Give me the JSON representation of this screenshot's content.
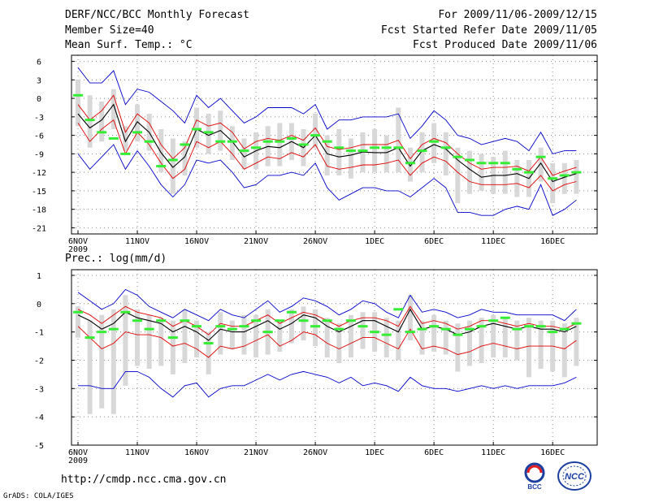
{
  "header": {
    "title": "DERF/NCC/BCC Monthly Forecast",
    "member_size": "Member Size=40",
    "variable_temp": "Mean Surf. Temp.: °C",
    "period": "For 2009/11/06-2009/12/15",
    "refer_date": "Fcst Started Refer Date 2009/11/05",
    "produced_date": "Fcst Produced Date 2009/11/06"
  },
  "footer": {
    "url": "http://cmdp.ncc.cma.gov.cn",
    "grads": "GrADS: COLA/IGES",
    "logo_bcc": "BCC",
    "logo_ncc": "NCC"
  },
  "colors": {
    "mean": "#000000",
    "spread": "#e00000",
    "extreme": "#0000cc",
    "box": "#d8d8d8",
    "obs": "#33ee33",
    "grid": "#888888"
  },
  "chart_data": [
    {
      "type": "line",
      "title": "Mean Surf. Temp.: °C",
      "x_tick_labels": [
        "6NOV",
        "11NOV",
        "16NOV",
        "21NOV",
        "26NOV",
        "1DEC",
        "6DEC",
        "11DEC",
        "16DEC"
      ],
      "x_year_label": "2009",
      "ylim": [
        -22,
        7
      ],
      "yticks": [
        6,
        3,
        0,
        -3,
        -6,
        -9,
        -12,
        -15,
        -18,
        -21
      ],
      "series": [
        {
          "name": "mean",
          "values": [
            -2.5,
            -4.8,
            -3.5,
            -1.0,
            -7.0,
            -3.8,
            -5.5,
            -8.8,
            -11.2,
            -9.5,
            -5.0,
            -6.0,
            -5.2,
            -7.0,
            -9.5,
            -8.5,
            -7.8,
            -8.0,
            -7.0,
            -8.0,
            -6.0,
            -9.0,
            -9.5,
            -9.2,
            -8.7,
            -8.8,
            -8.8,
            -8.0,
            -11.0,
            -8.5,
            -7.5,
            -8.2,
            -10.0,
            -11.5,
            -12.8,
            -12.5,
            -12.5,
            -12.2,
            -13.0,
            -10.5,
            -13.5,
            -12.8,
            -12.2
          ]
        },
        {
          "name": "upper-spread",
          "values": [
            -1.0,
            -3.5,
            -2.0,
            0.5,
            -5.5,
            -2.5,
            -4.0,
            -7.5,
            -9.8,
            -8.0,
            -3.5,
            -4.5,
            -4.0,
            -5.5,
            -8.2,
            -7.0,
            -6.5,
            -6.8,
            -6.0,
            -6.8,
            -4.8,
            -7.8,
            -8.3,
            -8.0,
            -7.5,
            -7.5,
            -7.5,
            -6.8,
            -9.8,
            -7.5,
            -6.5,
            -7.2,
            -9.0,
            -10.5,
            -11.5,
            -11.2,
            -11.2,
            -11.0,
            -11.8,
            -9.5,
            -12.5,
            -11.8,
            -11.2
          ]
        },
        {
          "name": "lower-spread",
          "values": [
            -4.0,
            -7.0,
            -5.0,
            -3.5,
            -9.0,
            -5.5,
            -7.5,
            -10.5,
            -13.0,
            -11.5,
            -7.0,
            -8.0,
            -7.0,
            -9.0,
            -11.5,
            -10.5,
            -9.5,
            -9.8,
            -8.8,
            -9.5,
            -7.5,
            -11.0,
            -11.5,
            -11.2,
            -10.8,
            -10.8,
            -10.5,
            -10.0,
            -12.5,
            -10.5,
            -9.5,
            -10.2,
            -12.0,
            -13.5,
            -14.0,
            -14.0,
            -14.0,
            -13.8,
            -14.5,
            -12.5,
            -15.0,
            -14.0,
            -13.5
          ]
        },
        {
          "name": "upper-extreme",
          "values": [
            5.0,
            2.5,
            2.5,
            4.5,
            -1.0,
            1.5,
            1.0,
            -0.5,
            -2.0,
            -4.0,
            0.5,
            -1.5,
            0.0,
            -2.0,
            -4.0,
            -3.0,
            -1.5,
            -1.5,
            -1.5,
            -2.5,
            -1.0,
            -5.0,
            -3.5,
            -3.5,
            -3.0,
            -3.0,
            -3.0,
            -2.5,
            -6.5,
            -4.5,
            -2.0,
            -3.5,
            -6.0,
            -6.5,
            -7.5,
            -7.0,
            -6.5,
            -7.0,
            -8.5,
            -5.5,
            -9.0,
            -8.5,
            -8.5
          ]
        },
        {
          "name": "lower-extreme",
          "values": [
            -9.0,
            -11.5,
            -9.5,
            -7.5,
            -11.5,
            -8.5,
            -11.0,
            -14.0,
            -16.0,
            -14.0,
            -10.0,
            -10.5,
            -10.0,
            -12.0,
            -14.5,
            -14.0,
            -12.5,
            -12.5,
            -12.0,
            -12.5,
            -10.5,
            -14.5,
            -16.5,
            -15.5,
            -14.5,
            -14.5,
            -15.0,
            -15.0,
            -16.0,
            -14.5,
            -13.0,
            -14.5,
            -18.5,
            -18.5,
            -19.0,
            -19.0,
            -18.0,
            -17.5,
            -18.0,
            -14.0,
            -19.0,
            -18.0,
            -16.5
          ]
        }
      ],
      "boxes": {
        "top": [
          3.0,
          0.5,
          -0.5,
          1.5,
          -4.5,
          -1.0,
          -2.5,
          -5.0,
          -6.5,
          -7.0,
          -1.5,
          -2.5,
          -2.0,
          -4.5,
          -6.5,
          -5.5,
          -4.5,
          -4.0,
          -4.0,
          -5.0,
          -2.5,
          -6.0,
          -5.0,
          -6.5,
          -5.5,
          -5.0,
          -6.0,
          -1.5,
          -8.0,
          -5.5,
          -4.0,
          -5.5,
          -8.0,
          -8.5,
          -9.0,
          -9.5,
          -8.5,
          -10.0,
          -10.0,
          -8.0,
          -10.5,
          -10.5,
          -10.0
        ],
        "bottom": [
          -4.5,
          -8.0,
          -7.0,
          -5.0,
          -8.5,
          -7.0,
          -8.5,
          -12.0,
          -15.5,
          -12.5,
          -8.0,
          -9.0,
          -8.5,
          -10.0,
          -11.5,
          -11.5,
          -11.0,
          -11.0,
          -10.0,
          -11.0,
          -8.0,
          -12.5,
          -12.5,
          -13.0,
          -12.0,
          -12.0,
          -12.0,
          -12.0,
          -13.5,
          -12.0,
          -10.5,
          -12.5,
          -17.0,
          -15.5,
          -15.0,
          -15.5,
          -15.5,
          -16.0,
          -16.0,
          -13.5,
          -17.0,
          -15.5,
          -15.5
        ]
      },
      "observed": [
        0.5,
        -3.5,
        -5.5,
        -6.5,
        -9.0,
        -5.5,
        -7.0,
        -11.0,
        -10.0,
        -7.5,
        -5.0,
        -5.5,
        -7.0,
        -7.0,
        -8.5,
        -8.0,
        -7.0,
        -7.0,
        -6.5,
        -7.5,
        -6.0,
        -7.0,
        -8.0,
        -8.5,
        -8.5,
        -8.0,
        -8.0,
        -8.0,
        -10.5,
        -8.5,
        -7.0,
        -8.0,
        -9.5,
        -10.0,
        -10.5,
        -10.5,
        -10.5,
        -11.5,
        -12.0,
        -9.5,
        -13.0,
        -12.5,
        -12.0
      ],
      "ylabel": "Mean Surf. Temp.: °C"
    },
    {
      "type": "line",
      "title": "Prec.: log(mm/d)",
      "x_tick_labels": [
        "6NOV",
        "11NOV",
        "16NOV",
        "21NOV",
        "26NOV",
        "1DEC",
        "6DEC",
        "11DEC",
        "16DEC"
      ],
      "x_year_label": "2009",
      "ylim": [
        -5,
        1.2
      ],
      "yticks": [
        1,
        0,
        -1,
        -2,
        -3,
        -4,
        -5
      ],
      "series": [
        {
          "name": "mean",
          "values": [
            -0.4,
            -0.6,
            -0.9,
            -0.7,
            -0.3,
            -0.5,
            -0.6,
            -0.7,
            -1.0,
            -0.8,
            -1.0,
            -1.3,
            -0.9,
            -1.0,
            -1.0,
            -0.8,
            -0.6,
            -0.9,
            -0.7,
            -0.4,
            -0.5,
            -0.8,
            -1.0,
            -0.8,
            -0.6,
            -0.6,
            -0.8,
            -1.0,
            -0.2,
            -0.9,
            -0.8,
            -0.9,
            -1.1,
            -1.0,
            -0.8,
            -0.7,
            -0.8,
            -0.9,
            -0.8,
            -0.9,
            -0.9,
            -1.0,
            -0.8
          ]
        },
        {
          "name": "upper-spread",
          "values": [
            -0.2,
            -0.4,
            -0.7,
            -0.4,
            -0.1,
            -0.3,
            -0.4,
            -0.5,
            -0.8,
            -0.6,
            -0.8,
            -1.1,
            -0.7,
            -0.8,
            -0.8,
            -0.6,
            -0.4,
            -0.7,
            -0.5,
            -0.3,
            -0.4,
            -0.6,
            -0.8,
            -0.6,
            -0.5,
            -0.5,
            -0.6,
            -0.8,
            -0.1,
            -0.7,
            -0.6,
            -0.7,
            -0.9,
            -0.8,
            -0.6,
            -0.6,
            -0.7,
            -0.8,
            -0.7,
            -0.8,
            -0.8,
            -0.9,
            -0.7
          ]
        },
        {
          "name": "lower-spread",
          "values": [
            -0.8,
            -1.2,
            -1.6,
            -1.4,
            -1.0,
            -1.1,
            -1.1,
            -1.2,
            -1.5,
            -1.4,
            -1.6,
            -1.9,
            -1.5,
            -1.6,
            -1.5,
            -1.3,
            -1.1,
            -1.5,
            -1.3,
            -1.0,
            -1.1,
            -1.4,
            -1.6,
            -1.4,
            -1.2,
            -1.2,
            -1.4,
            -1.6,
            -0.9,
            -1.6,
            -1.5,
            -1.6,
            -1.8,
            -1.7,
            -1.5,
            -1.4,
            -1.5,
            -1.6,
            -1.5,
            -1.5,
            -1.5,
            -1.6,
            -1.3
          ]
        },
        {
          "name": "upper-extreme",
          "values": [
            0.4,
            0.1,
            -0.2,
            0.0,
            0.5,
            0.3,
            -0.1,
            -0.3,
            -0.5,
            -0.2,
            -0.4,
            -0.6,
            -0.2,
            -0.4,
            -0.5,
            -0.2,
            0.1,
            -0.3,
            -0.1,
            0.2,
            0.1,
            -0.1,
            -0.4,
            -0.2,
            0.1,
            0.0,
            -0.3,
            -0.5,
            0.3,
            -0.3,
            -0.2,
            -0.3,
            -0.5,
            -0.4,
            -0.2,
            -0.3,
            -0.3,
            -0.4,
            -0.4,
            -0.4,
            -0.4,
            -0.6,
            -0.2
          ]
        },
        {
          "name": "lower-extreme",
          "values": [
            -2.9,
            -2.9,
            -3.0,
            -3.0,
            -2.4,
            -2.4,
            -2.6,
            -3.0,
            -3.3,
            -2.9,
            -2.8,
            -3.3,
            -3.0,
            -2.9,
            -2.9,
            -2.7,
            -2.5,
            -2.7,
            -2.5,
            -2.4,
            -2.5,
            -2.6,
            -2.8,
            -2.6,
            -2.9,
            -2.8,
            -2.9,
            -3.1,
            -2.6,
            -2.9,
            -3.0,
            -3.0,
            -3.1,
            -3.0,
            -2.9,
            -3.0,
            -2.9,
            -3.0,
            -2.9,
            -2.9,
            -2.9,
            -2.8,
            -2.6
          ]
        },
        {
          "name": "",
          "values": []
        }
      ],
      "boxes": {
        "top": [
          -0.1,
          -0.6,
          -0.4,
          -0.2,
          0.3,
          -0.2,
          -0.4,
          -0.5,
          -0.6,
          -0.2,
          -0.6,
          -1.0,
          -0.3,
          -0.6,
          -0.4,
          -0.4,
          -0.2,
          -0.6,
          -0.2,
          -0.1,
          -0.2,
          -0.5,
          -0.7,
          -0.4,
          -0.3,
          -0.3,
          -0.5,
          -0.6,
          0.3,
          -0.6,
          -0.4,
          -0.6,
          -0.7,
          -0.6,
          -0.5,
          -0.4,
          -0.5,
          -0.6,
          -0.5,
          -0.6,
          -0.6,
          -0.7,
          -0.5
        ],
        "bottom": [
          -1.2,
          -3.9,
          -3.7,
          -3.9,
          -2.9,
          -2.2,
          -2.3,
          -2.2,
          -2.5,
          -2.1,
          -1.9,
          -2.5,
          -1.8,
          -1.6,
          -1.8,
          -1.9,
          -1.8,
          -1.7,
          -1.4,
          -1.3,
          -1.5,
          -1.9,
          -2.1,
          -1.9,
          -1.6,
          -1.7,
          -1.9,
          -2.0,
          -1.3,
          -1.8,
          -1.7,
          -1.8,
          -2.4,
          -2.2,
          -2.1,
          -1.9,
          -1.9,
          -2.0,
          -2.6,
          -2.3,
          -2.4,
          -2.6,
          -2.2
        ]
      },
      "observed": [
        -0.3,
        -1.2,
        -1.0,
        -0.9,
        -0.3,
        -0.6,
        -0.9,
        -0.6,
        -1.2,
        -0.6,
        -0.8,
        -1.4,
        -0.8,
        -0.9,
        -0.8,
        -0.6,
        -1.0,
        -0.6,
        -0.3,
        -0.6,
        -0.8,
        -0.6,
        -0.9,
        -0.6,
        -0.8,
        -1.0,
        -1.1,
        -0.2,
        -1.0,
        -0.9,
        -0.8,
        -0.9,
        -1.1,
        -0.9,
        -0.8,
        -0.6,
        -0.5,
        -0.9,
        -0.8,
        -0.8,
        -1.0,
        -0.9,
        -0.7
      ],
      "ylabel": "Prec.: log(mm/d)"
    }
  ]
}
